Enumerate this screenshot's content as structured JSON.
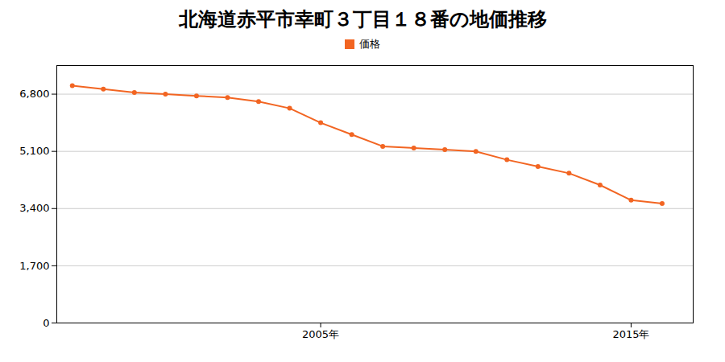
{
  "chart_data": {
    "type": "line",
    "title": "北海道赤平市幸町３丁目１８番の地価推移",
    "x": [
      1997,
      1998,
      1999,
      2000,
      2001,
      2002,
      2003,
      2004,
      2005,
      2006,
      2007,
      2008,
      2009,
      2010,
      2011,
      2012,
      2013,
      2014,
      2015,
      2016
    ],
    "series": [
      {
        "name": "価格",
        "color": "#f26522",
        "marker": "circle",
        "values": [
          7050,
          6950,
          6850,
          6800,
          6750,
          6700,
          6580,
          6380,
          5950,
          5600,
          5250,
          5200,
          5150,
          5100,
          4850,
          4650,
          4450,
          4100,
          3650,
          3550
        ]
      }
    ],
    "xlim": [
      1996.5,
      2017
    ],
    "xticks": [
      {
        "value": 2005,
        "label": "2005年"
      },
      {
        "value": 2015,
        "label": "2015年"
      }
    ],
    "ylim": [
      0,
      7650
    ],
    "yticks": [
      0,
      {
        "value": 1700,
        "label": "1,700"
      },
      {
        "value": 3400,
        "label": "3,400"
      },
      {
        "value": 5100,
        "label": "5,100"
      },
      {
        "value": 6800,
        "label": "6,800"
      }
    ],
    "grid": true,
    "legend": "top"
  }
}
